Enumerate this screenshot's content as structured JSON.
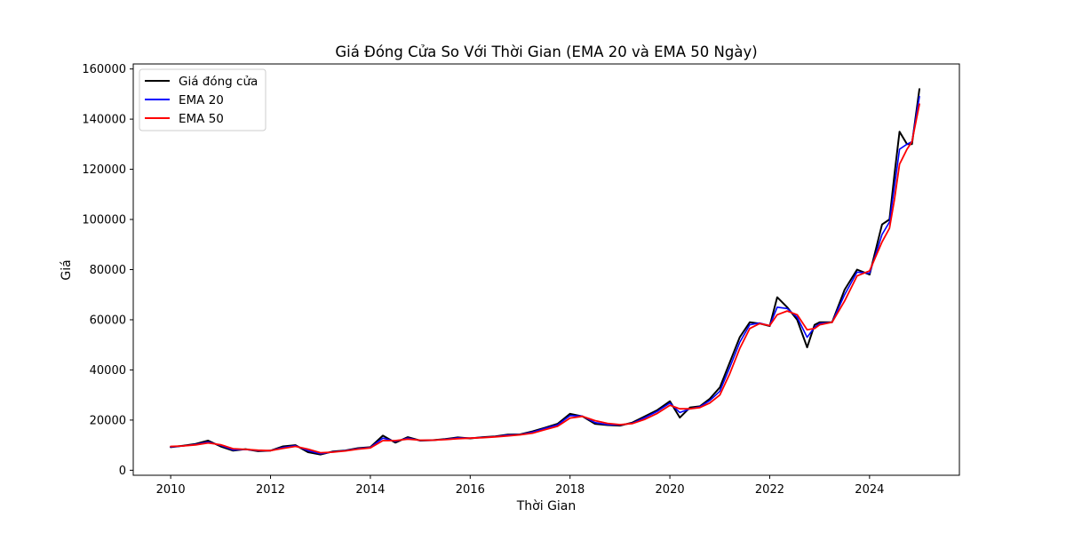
{
  "chart_data": {
    "type": "line",
    "title": "Giá Đóng Cửa So Với Thời Gian (EMA 20 và EMA 50 Ngày)",
    "xlabel": "Thời Gian",
    "ylabel": "Giá",
    "xlim": [
      2009.25,
      2025.8
    ],
    "ylim": [
      -2000,
      162000
    ],
    "x_ticks": [
      2010,
      2012,
      2014,
      2016,
      2018,
      2020,
      2022,
      2024
    ],
    "x_tick_labels": [
      "2010",
      "2012",
      "2014",
      "2016",
      "2018",
      "2020",
      "2022",
      "2024"
    ],
    "y_ticks": [
      0,
      20000,
      40000,
      60000,
      80000,
      100000,
      120000,
      140000,
      160000
    ],
    "y_tick_labels": [
      "0",
      "20000",
      "40000",
      "60000",
      "80000",
      "100000",
      "120000",
      "140000",
      "160000"
    ],
    "grid": false,
    "legend_position": "top-left",
    "series": [
      {
        "name": "Giá đóng cửa",
        "color": "#000000",
        "x": [
          2010.0,
          2010.25,
          2010.5,
          2010.75,
          2011.0,
          2011.25,
          2011.5,
          2011.75,
          2012.0,
          2012.25,
          2012.5,
          2012.75,
          2013.0,
          2013.25,
          2013.5,
          2013.75,
          2014.0,
          2014.25,
          2014.5,
          2014.75,
          2015.0,
          2015.25,
          2015.5,
          2015.75,
          2016.0,
          2016.25,
          2016.5,
          2016.75,
          2017.0,
          2017.25,
          2017.5,
          2017.75,
          2018.0,
          2018.25,
          2018.5,
          2018.75,
          2019.0,
          2019.25,
          2019.5,
          2019.75,
          2020.0,
          2020.2,
          2020.4,
          2020.6,
          2020.8,
          2021.0,
          2021.2,
          2021.4,
          2021.6,
          2021.8,
          2022.0,
          2022.15,
          2022.35,
          2022.55,
          2022.75,
          2022.9,
          2023.0,
          2023.25,
          2023.5,
          2023.75,
          2024.0,
          2024.25,
          2024.4,
          2024.5,
          2024.6,
          2024.75,
          2024.85,
          2025.0
        ],
        "y": [
          9200,
          9800,
          10500,
          11800,
          9500,
          7800,
          8400,
          7600,
          7800,
          9500,
          10000,
          7200,
          6300,
          7500,
          7900,
          8800,
          9200,
          13800,
          11000,
          13200,
          11800,
          12000,
          12400,
          13100,
          12700,
          13200,
          13500,
          14200,
          14300,
          15500,
          17000,
          18500,
          22500,
          21500,
          18500,
          18000,
          17800,
          19000,
          21500,
          24000,
          27500,
          21000,
          25000,
          25500,
          28500,
          33000,
          43000,
          53000,
          59000,
          58500,
          57500,
          69000,
          65000,
          60000,
          49000,
          58000,
          59000,
          59000,
          72000,
          80000,
          78000,
          98000,
          100000,
          118000,
          135000,
          130000,
          130000,
          152000
        ]
      },
      {
        "name": "EMA 20",
        "color": "#0000ff",
        "x": [
          2010.0,
          2010.25,
          2010.5,
          2010.75,
          2011.0,
          2011.25,
          2011.5,
          2011.75,
          2012.0,
          2012.25,
          2012.5,
          2012.75,
          2013.0,
          2013.25,
          2013.5,
          2013.75,
          2014.0,
          2014.25,
          2014.5,
          2014.75,
          2015.0,
          2015.25,
          2015.5,
          2015.75,
          2016.0,
          2016.25,
          2016.5,
          2016.75,
          2017.0,
          2017.25,
          2017.5,
          2017.75,
          2018.0,
          2018.25,
          2018.5,
          2018.75,
          2019.0,
          2019.25,
          2019.5,
          2019.75,
          2020.0,
          2020.2,
          2020.4,
          2020.6,
          2020.8,
          2021.0,
          2021.2,
          2021.4,
          2021.6,
          2021.8,
          2022.0,
          2022.15,
          2022.35,
          2022.55,
          2022.75,
          2022.9,
          2023.0,
          2023.25,
          2023.5,
          2023.75,
          2024.0,
          2024.25,
          2024.4,
          2024.5,
          2024.6,
          2024.75,
          2024.85,
          2025.0
        ],
        "y": [
          9300,
          9700,
          10300,
          11300,
          9900,
          8100,
          8300,
          7800,
          7800,
          9100,
          9800,
          7800,
          6600,
          7300,
          7800,
          8600,
          9100,
          12800,
          11500,
          12800,
          11900,
          12000,
          12300,
          12900,
          12800,
          13100,
          13400,
          14000,
          14200,
          15200,
          16700,
          18100,
          21800,
          21600,
          19000,
          18200,
          18000,
          18800,
          21000,
          23500,
          26800,
          23000,
          24500,
          25300,
          27800,
          31500,
          41000,
          51000,
          58000,
          58700,
          57600,
          65000,
          64500,
          61000,
          53000,
          57000,
          58500,
          59000,
          70000,
          79000,
          78500,
          94000,
          99000,
          113000,
          128000,
          130000,
          131000,
          149000
        ]
      },
      {
        "name": "EMA 50",
        "color": "#ff0000",
        "x": [
          2010.0,
          2010.25,
          2010.5,
          2010.75,
          2011.0,
          2011.25,
          2011.5,
          2011.75,
          2012.0,
          2012.25,
          2012.5,
          2012.75,
          2013.0,
          2013.25,
          2013.5,
          2013.75,
          2014.0,
          2014.25,
          2014.5,
          2014.75,
          2015.0,
          2015.25,
          2015.5,
          2015.75,
          2016.0,
          2016.25,
          2016.5,
          2016.75,
          2017.0,
          2017.25,
          2017.5,
          2017.75,
          2018.0,
          2018.25,
          2018.5,
          2018.75,
          2019.0,
          2019.25,
          2019.5,
          2019.75,
          2020.0,
          2020.2,
          2020.4,
          2020.6,
          2020.8,
          2021.0,
          2021.2,
          2021.4,
          2021.6,
          2021.8,
          2022.0,
          2022.15,
          2022.35,
          2022.55,
          2022.75,
          2022.9,
          2023.0,
          2023.25,
          2023.5,
          2023.75,
          2024.0,
          2024.25,
          2024.4,
          2024.5,
          2024.6,
          2024.75,
          2024.85,
          2025.0
        ],
        "y": [
          9500,
          9700,
          10100,
          10900,
          10200,
          8600,
          8300,
          8000,
          7800,
          8700,
          9500,
          8400,
          7000,
          7200,
          7700,
          8400,
          8900,
          11800,
          11800,
          12400,
          12000,
          12000,
          12200,
          12600,
          12800,
          13000,
          13300,
          13700,
          14100,
          14800,
          16200,
          17500,
          20800,
          21500,
          19800,
          18700,
          18200,
          18600,
          20300,
          22700,
          25900,
          24500,
          24500,
          25000,
          26800,
          30000,
          38500,
          48500,
          56500,
          58500,
          57700,
          62000,
          63500,
          62000,
          56000,
          56500,
          58000,
          59000,
          67500,
          77500,
          79500,
          91000,
          96500,
          108000,
          122000,
          128000,
          131000,
          146000
        ]
      }
    ]
  }
}
